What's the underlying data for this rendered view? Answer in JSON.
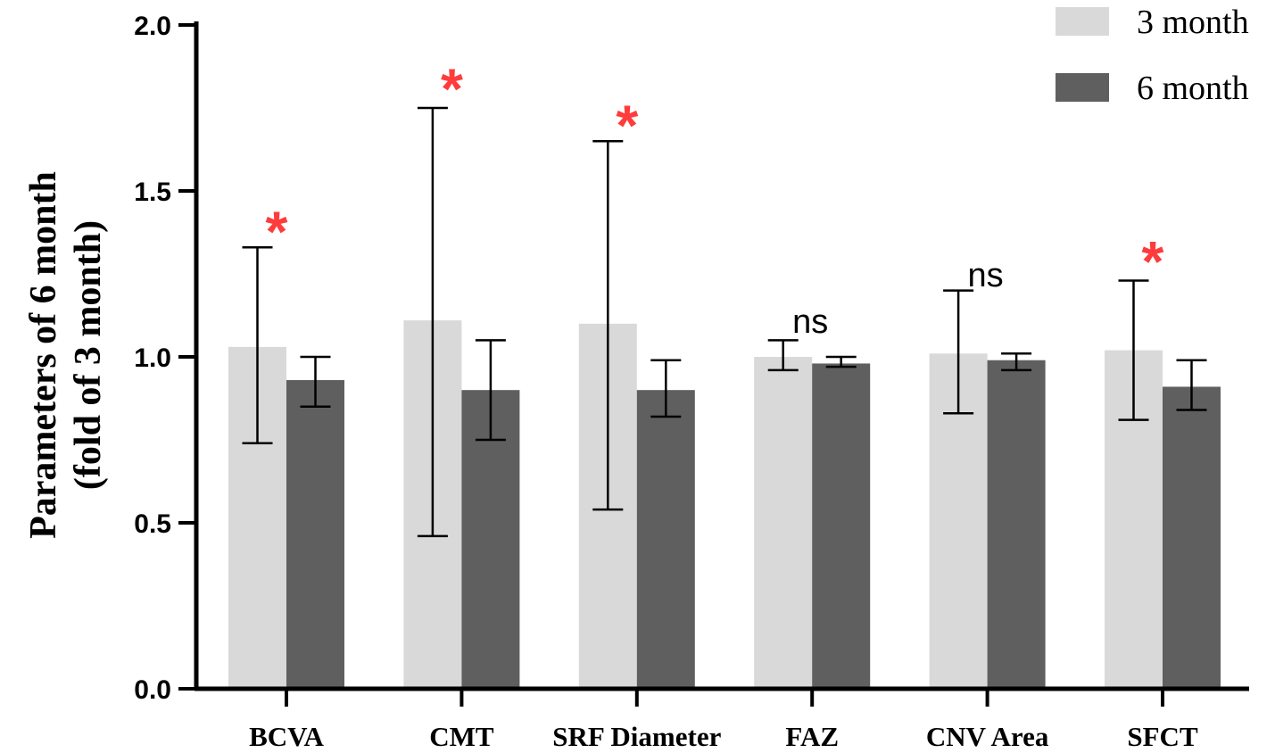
{
  "chart_data": {
    "type": "bar",
    "title": "",
    "xlabel": "",
    "ylabel_lines": [
      "Parameters of 6 month",
      "(fold of 3 month)"
    ],
    "ylim": [
      0,
      2.0
    ],
    "yticks": [
      0.0,
      0.5,
      1.0,
      1.5,
      2.0
    ],
    "ytick_labels": [
      "0.0",
      "0.5",
      "1.0",
      "1.5",
      "2.0"
    ],
    "categories": [
      "BCVA",
      "CMT",
      "SRF Diameter",
      "FAZ",
      "CNV Area",
      "SFCT"
    ],
    "series": [
      {
        "name": "3 month",
        "color": "#d9d9d9",
        "values": [
          1.03,
          1.11,
          1.1,
          1.0,
          1.01,
          1.02
        ],
        "err_low": [
          0.74,
          0.46,
          0.54,
          0.96,
          0.83,
          0.81
        ],
        "err_high": [
          1.33,
          1.75,
          1.65,
          1.05,
          1.2,
          1.23
        ]
      },
      {
        "name": "6 month",
        "color": "#5f5f5f",
        "values": [
          0.93,
          0.9,
          0.9,
          0.98,
          0.99,
          0.91
        ],
        "err_low": [
          0.85,
          0.75,
          0.82,
          0.97,
          0.96,
          0.84
        ],
        "err_high": [
          1.0,
          1.05,
          0.99,
          1.0,
          1.01,
          0.99
        ]
      }
    ],
    "significance": [
      {
        "label": "*",
        "y": 1.41,
        "color": "#ff3b3b"
      },
      {
        "label": "*",
        "y": 1.84,
        "color": "#ff3b3b"
      },
      {
        "label": "*",
        "y": 1.73,
        "color": "#ff3b3b"
      },
      {
        "label": "ns",
        "y": 1.11,
        "color": "#000000"
      },
      {
        "label": "ns",
        "y": 1.25,
        "color": "#000000"
      },
      {
        "label": "*",
        "y": 1.32,
        "color": "#ff3b3b"
      }
    ],
    "legend": {
      "position": "top-right",
      "entries": [
        "3 month",
        "6 month"
      ]
    },
    "grid": false
  }
}
